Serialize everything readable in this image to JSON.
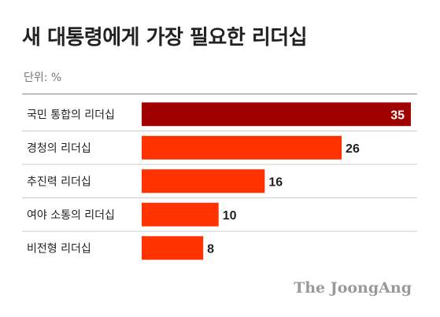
{
  "title": "새 대통령에게 가장 필요한 리더십",
  "unit_label": "단위: %",
  "credit": "The JoongAng",
  "colors": {
    "highlight": "#a10000",
    "bar": "#ff3300",
    "divider": "#cccccc",
    "value_on_bar": "#ffffff",
    "value_outside": "#222222"
  },
  "chart_data": {
    "type": "bar",
    "orientation": "horizontal",
    "categories": [
      "국민 통합의 리더십",
      "경청의 리더십",
      "추진력 리더십",
      "여야 소통의 리더십",
      "비전형 리더십"
    ],
    "values": [
      35,
      26,
      16,
      10,
      8
    ],
    "value_labels": [
      "35",
      "26",
      "16",
      "10",
      "8"
    ],
    "highlighted_index": 0,
    "xlim": [
      0,
      35
    ],
    "grid": false,
    "legend": "none"
  }
}
